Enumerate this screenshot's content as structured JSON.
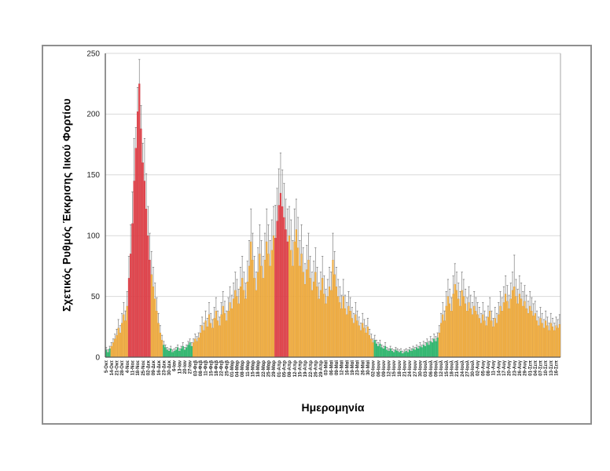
{
  "figure": {
    "frame_border_color": "#8f8f8f",
    "background": "#ffffff"
  },
  "chart_data": {
    "type": "bar",
    "title": "",
    "xlabel": "Ημερομηνία",
    "ylabel": "Σχετικός Ρυθμός Έκκρισης Ιικού Φορτίου",
    "ylim": [
      0,
      250
    ],
    "yticks": [
      0,
      50,
      100,
      150,
      200,
      250
    ],
    "grid": true,
    "legend": "none",
    "gridline_color": "#d9d9d9",
    "axis_color": "#595959",
    "tick_text_color": "#262626",
    "error_bar_color": "#808080",
    "tick_every_n_bars": 3,
    "x_tick_labels": [
      "5-Οκτ",
      "14-Οκτ",
      "21-Οκτ",
      "28-Οκτ",
      "4-Νοε",
      "11-Νοε",
      "18-Νοε",
      "25-Νοε",
      "02-Δεκ",
      "09-Δεκ",
      "16-Δεκ",
      "23-Δεκ",
      "30-Δεκ",
      "6-Ιαν",
      "13-Ιαν",
      "20-Ιαν",
      "27-Ιαν",
      "03-Φεβ",
      "08-Φεβ",
      "11-Φεβ",
      "15-Φεβ",
      "18-Φεβ",
      "22-Φεβ",
      "25-Φεβ",
      "01-Μαρ",
      "04-Μαρ",
      "08-Μαρ",
      "11-Μαρ",
      "15-Μαρ",
      "18-Μαρ",
      "22-Μαρ",
      "25-Μαρ",
      "29-Μαρ",
      "01-Απρ",
      "05-Απρ",
      "08-Απρ",
      "12-Απρ",
      "15-Απρ",
      "19-Απρ",
      "22-Απρ",
      "26-Απρ",
      "29-Απρ",
      "03-Μαϊ",
      "06-Μαϊ",
      "09-Μαϊ",
      "12-Μαϊ",
      "16-Μαϊ",
      "19-Μαϊ",
      "23-Μαϊ",
      "26-Μαϊ",
      "30-Μαϊ",
      "02-Ιουν",
      "06-Ιουν",
      "09-Ιουν",
      "12-Ιουν",
      "15-Ιουν",
      "18-Ιουν",
      "21-Ιουν",
      "24-Ιουν",
      "27-Ιουν",
      "30-Ιουν",
      "03-Ιουλ",
      "06-Ιουλ",
      "09-Ιουλ",
      "12-Ιουλ",
      "15-Ιουλ",
      "18-Ιουλ",
      "21-Ιουλ",
      "24-Ιουλ",
      "27-Ιουλ",
      "30-Ιουλ",
      "02-Αυγ",
      "05-Αυγ",
      "08-Αυγ",
      "11-Αυγ",
      "14-Αυγ",
      "17-Αυγ",
      "20-Αυγ",
      "23-Αυγ",
      "26-Αυγ",
      "29-Αυγ",
      "01-Σεπ",
      "04-Σεπ",
      "07-Σεπ",
      "10-Σεπ",
      "13-Σεπ",
      "16-Σεπ"
    ],
    "color_map": {
      "o": "#F4B142",
      "r": "#E8484F",
      "g": "#33BE74"
    },
    "edge_map": {
      "o": "#D99530",
      "r": "#C02B35",
      "g": "#1F9E58"
    },
    "bars": {
      "values": [
        6,
        4,
        7,
        9,
        12,
        15,
        18,
        24,
        20,
        28,
        35,
        30,
        42,
        65,
        85,
        110,
        145,
        172,
        202,
        225,
        188,
        160,
        145,
        122,
        100,
        80,
        68,
        58,
        48,
        38,
        28,
        20,
        14,
        10,
        8,
        6,
        5,
        7,
        4,
        5,
        6,
        8,
        5,
        7,
        9,
        6,
        8,
        10,
        12,
        9,
        12,
        15,
        13,
        16,
        20,
        26,
        22,
        30,
        25,
        35,
        28,
        24,
        32,
        38,
        30,
        26,
        35,
        42,
        36,
        30,
        38,
        45,
        40,
        48,
        55,
        50,
        44,
        58,
        65,
        55,
        48,
        62,
        75,
        95,
        80,
        65,
        55,
        70,
        85,
        75,
        65,
        80,
        95,
        85,
        75,
        88,
        100,
        98,
        112,
        125,
        135,
        124,
        115,
        105,
        95,
        100,
        88,
        75,
        95,
        105,
        90,
        75,
        85,
        70,
        60,
        72,
        80,
        65,
        55,
        62,
        70,
        58,
        48,
        55,
        65,
        52,
        44,
        50,
        58,
        55,
        80,
        68,
        58,
        50,
        45,
        40,
        50,
        40,
        35,
        42,
        38,
        32,
        28,
        35,
        30,
        26,
        22,
        28,
        24,
        20,
        25,
        18,
        15,
        12,
        14,
        11,
        9,
        11,
        8,
        7,
        9,
        6,
        5,
        7,
        5,
        4,
        6,
        5,
        4,
        5,
        3,
        4,
        5,
        4,
        6,
        5,
        7,
        6,
        8,
        7,
        9,
        8,
        10,
        9,
        12,
        10,
        13,
        12,
        15,
        13,
        16,
        20,
        28,
        35,
        30,
        42,
        50,
        44,
        38,
        52,
        60,
        55,
        48,
        42,
        55,
        50,
        44,
        38,
        45,
        40,
        35,
        42,
        38,
        35,
        32,
        28,
        35,
        30,
        26,
        33,
        38,
        30,
        25,
        32,
        28,
        35,
        42,
        38,
        45,
        52,
        46,
        40,
        48,
        55,
        58,
        50,
        44,
        52,
        48,
        42,
        46,
        40,
        36,
        42,
        38,
        34,
        36,
        30,
        26,
        32,
        28,
        24,
        30,
        26,
        22,
        28,
        25,
        22,
        26,
        24,
        27
      ],
      "errors": [
        2,
        2,
        2,
        3,
        3,
        4,
        5,
        7,
        6,
        8,
        10,
        8,
        12,
        18,
        24,
        26,
        35,
        17,
        20,
        20,
        19,
        16,
        35,
        29,
        24,
        22,
        19,
        16,
        13,
        11,
        8,
        6,
        4,
        3,
        2,
        2,
        2,
        2,
        2,
        2,
        2,
        2,
        2,
        2,
        3,
        2,
        2,
        3,
        3,
        3,
        3,
        4,
        4,
        4,
        6,
        7,
        6,
        8,
        7,
        10,
        8,
        7,
        9,
        11,
        8,
        7,
        10,
        12,
        10,
        8,
        11,
        13,
        11,
        13,
        15,
        14,
        12,
        16,
        18,
        15,
        13,
        17,
        21,
        27,
        22,
        18,
        15,
        20,
        24,
        21,
        18,
        22,
        27,
        24,
        21,
        25,
        24,
        27,
        27,
        30,
        33,
        30,
        28,
        25,
        27,
        24,
        25,
        21,
        27,
        25,
        25,
        21,
        24,
        20,
        17,
        20,
        22,
        18,
        15,
        17,
        20,
        16,
        13,
        15,
        18,
        15,
        12,
        14,
        16,
        15,
        22,
        19,
        16,
        14,
        13,
        11,
        14,
        11,
        10,
        12,
        11,
        9,
        8,
        10,
        8,
        7,
        6,
        8,
        7,
        6,
        7,
        5,
        4,
        3,
        4,
        3,
        3,
        3,
        2,
        2,
        3,
        2,
        2,
        2,
        2,
        2,
        2,
        2,
        2,
        2,
        2,
        2,
        2,
        2,
        2,
        2,
        2,
        2,
        2,
        2,
        3,
        2,
        3,
        3,
        3,
        3,
        4,
        3,
        4,
        4,
        4,
        6,
        8,
        10,
        8,
        12,
        14,
        12,
        11,
        15,
        17,
        15,
        13,
        12,
        15,
        14,
        12,
        11,
        13,
        11,
        10,
        12,
        11,
        10,
        9,
        8,
        10,
        8,
        7,
        9,
        11,
        8,
        7,
        9,
        8,
        10,
        12,
        11,
        13,
        15,
        13,
        11,
        13,
        15,
        26,
        14,
        12,
        15,
        13,
        12,
        13,
        11,
        10,
        12,
        11,
        10,
        10,
        8,
        7,
        9,
        8,
        7,
        8,
        7,
        6,
        8,
        7,
        6,
        7,
        7,
        8
      ],
      "colors": "gggoooooooooorrrrrrrrrrrrrooooooogggggggggggggggggooooooooooooooooooooooooooooooooooooooooooooooorrrrrrrrooooooooooooooooooooooooooooooooooooooooooooooooogggggggggggggggggggggggggggggggggggggoooooooooooooooooooooooooooooooooooooooooooooooooooooooooooooooooooooo"
    }
  }
}
